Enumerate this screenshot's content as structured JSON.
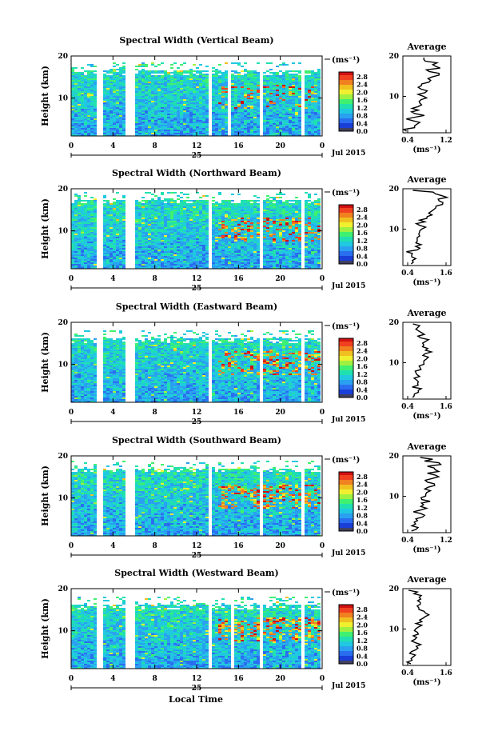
{
  "colors": {
    "scale": [
      "#2a2a9a",
      "#1a3fd8",
      "#2a6ef0",
      "#2aa0f0",
      "#20c8e0",
      "#20e0b0",
      "#40f070",
      "#a0f040",
      "#f0f030",
      "#f0c020",
      "#f08020",
      "#f04020",
      "#d01010"
    ],
    "cb_bottom": "#404060"
  },
  "chart_data": [
    {
      "type": "heatmap",
      "title": "Spectral Width (Vertical Beam)",
      "ylabel": "Height (km)",
      "yticks": [
        "20",
        "10"
      ],
      "xticks": [
        "0",
        "4",
        "8",
        "12",
        "16",
        "20",
        "0"
      ],
      "day": "25",
      "date": "Jul 2015",
      "cb_unit": "(ms⁻¹)",
      "cb_ticks": [
        "2.8",
        "2.4",
        "2.0",
        "1.6",
        "1.2",
        "0.8",
        "0.4",
        "0.0"
      ],
      "avg_title": "Average",
      "avg_xticks": [
        "0.4",
        "1.2"
      ],
      "avg_yticks": [
        "20",
        "10"
      ],
      "avg_unit": "(ms⁻¹)",
      "gaps": [
        [
          2.3,
          2.8
        ],
        [
          5.0,
          6.0
        ],
        [
          13.0,
          13.3
        ],
        [
          14.8,
          15.2
        ],
        [
          17.8,
          18.2
        ],
        [
          22.0,
          22.3
        ]
      ],
      "top_km": 17.5,
      "hot": 0.15,
      "avg_profile": [
        0.45,
        0.5,
        0.55,
        0.5,
        0.6,
        0.55,
        0.6,
        0.65,
        0.6,
        0.7,
        0.65,
        0.8,
        0.75,
        0.7,
        0.9,
        0.85,
        1.0,
        0.9,
        1.05,
        0.95,
        0.8,
        0.7
      ]
    },
    {
      "type": "heatmap",
      "title": "Spectral Width (Northward Beam)",
      "ylabel": "Height (km)",
      "yticks": [
        "20",
        "10"
      ],
      "xticks": [
        "0",
        "4",
        "8",
        "12",
        "16",
        "20",
        "0"
      ],
      "day": "25",
      "date": "Jul 2015",
      "cb_unit": "(ms⁻¹)",
      "cb_ticks": [
        "2.8",
        "2.4",
        "2.0",
        "1.6",
        "1.2",
        "0.8",
        "0.4",
        "0.0"
      ],
      "avg_title": "Average",
      "avg_xticks": [
        "0.4",
        "1.6"
      ],
      "avg_yticks": [
        "20",
        "10"
      ],
      "avg_unit": "(ms⁻¹)",
      "gaps": [
        [
          2.3,
          2.8
        ],
        [
          5.0,
          6.0
        ],
        [
          13.0,
          13.3
        ],
        [
          17.8,
          18.2
        ],
        [
          22.0,
          22.3
        ]
      ],
      "top_km": 18.5,
      "hot": 0.3,
      "avg_profile": [
        0.5,
        0.55,
        0.6,
        0.5,
        0.65,
        0.7,
        0.6,
        0.75,
        0.7,
        0.8,
        0.85,
        0.8,
        0.9,
        1.0,
        1.2,
        1.1,
        1.3,
        1.5,
        1.4,
        1.6,
        1.2,
        0.6
      ]
    },
    {
      "type": "heatmap",
      "title": "Spectral Width (Eastward Beam)",
      "ylabel": "Height (km)",
      "yticks": [
        "20",
        "10"
      ],
      "xticks": [
        "0",
        "4",
        "8",
        "12",
        "16",
        "20",
        "0"
      ],
      "day": "25",
      "date": "Jul 2015",
      "cb_unit": "(ms⁻¹)",
      "cb_ticks": [
        "2.8",
        "2.4",
        "2.0",
        "1.6",
        "1.2",
        "0.8",
        "0.4",
        "0.0"
      ],
      "avg_title": "Average",
      "avg_xticks": [
        "0.4",
        "1.6"
      ],
      "avg_yticks": [
        "20",
        "10"
      ],
      "avg_unit": "(ms⁻¹)",
      "gaps": [
        [
          2.3,
          2.8
        ],
        [
          5.0,
          6.0
        ],
        [
          13.0,
          13.3
        ],
        [
          17.8,
          18.2
        ],
        [
          22.0,
          22.3
        ]
      ],
      "top_km": 17.0,
      "hot": 0.3,
      "avg_profile": [
        0.6,
        0.65,
        0.7,
        0.6,
        0.75,
        0.7,
        0.8,
        0.7,
        0.85,
        0.8,
        0.9,
        1.0,
        0.9,
        1.1,
        1.0,
        0.9,
        1.0,
        0.85,
        0.9,
        0.8,
        0.7,
        0.6
      ]
    },
    {
      "type": "heatmap",
      "title": "Spectral Width (Southward Beam)",
      "ylabel": "Height (km)",
      "yticks": [
        "20",
        "10"
      ],
      "xticks": [
        "0",
        "4",
        "8",
        "12",
        "16",
        "20",
        "0"
      ],
      "day": "25",
      "date": "Jul 2015",
      "cb_unit": "(ms⁻¹)",
      "cb_ticks": [
        "2.8",
        "2.4",
        "2.0",
        "1.6",
        "1.2",
        "0.8",
        "0.4",
        "0.0"
      ],
      "avg_title": "Average",
      "avg_xticks": [
        "0.4",
        "1.2"
      ],
      "avg_yticks": [
        "20",
        "10"
      ],
      "avg_unit": "(ms⁻¹)",
      "gaps": [
        [
          2.3,
          2.8
        ],
        [
          5.0,
          6.0
        ],
        [
          13.0,
          13.3
        ],
        [
          17.8,
          18.2
        ],
        [
          22.0,
          22.3
        ]
      ],
      "top_km": 18.0,
      "hot": 0.35,
      "avg_profile": [
        0.5,
        0.55,
        0.6,
        0.55,
        0.65,
        0.6,
        0.7,
        0.65,
        0.75,
        0.7,
        0.8,
        0.85,
        0.8,
        0.9,
        0.85,
        0.95,
        0.9,
        1.0,
        0.9,
        1.1,
        0.8,
        0.6
      ]
    },
    {
      "type": "heatmap",
      "title": "Spectral Width (Westward Beam)",
      "ylabel": "Height (km)",
      "yticks": [
        "20",
        "10"
      ],
      "xticks": [
        "0",
        "4",
        "8",
        "12",
        "16",
        "20",
        "0"
      ],
      "day": "25",
      "date": "Jul 2015",
      "cb_unit": "(ms⁻¹)",
      "cb_ticks": [
        "2.8",
        "2.4",
        "2.0",
        "1.6",
        "1.2",
        "0.8",
        "0.4",
        "0.0"
      ],
      "avg_title": "Average",
      "avg_xticks": [
        "0.4",
        "1.6"
      ],
      "avg_yticks": [
        "20",
        "10"
      ],
      "avg_unit": "(ms⁻¹)",
      "gaps": [
        [
          2.3,
          2.8
        ],
        [
          5.0,
          6.0
        ],
        [
          13.0,
          13.3
        ],
        [
          15.0,
          15.3
        ],
        [
          17.8,
          18.2
        ],
        [
          22.0,
          22.3
        ]
      ],
      "top_km": 17.0,
      "hot": 0.4,
      "avg_profile": [
        0.5,
        0.55,
        0.6,
        0.5,
        0.65,
        0.7,
        0.6,
        0.7,
        0.65,
        0.75,
        0.7,
        0.8,
        0.9,
        0.85,
        1.0,
        0.9,
        0.8,
        0.85,
        0.7,
        0.75,
        0.6,
        0.5
      ]
    }
  ],
  "xlabel": "Local Time"
}
